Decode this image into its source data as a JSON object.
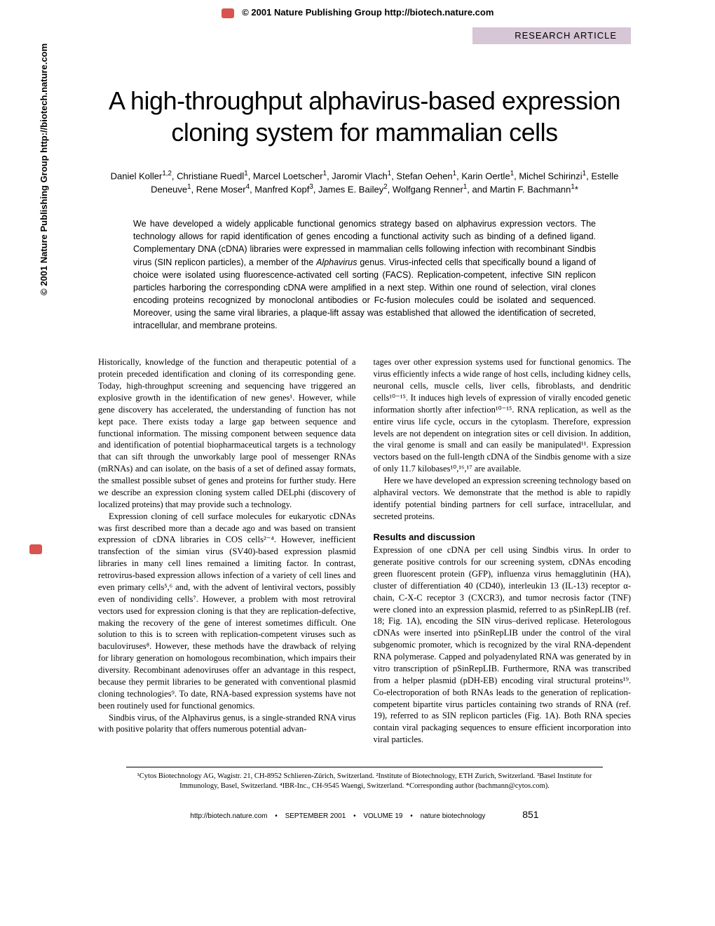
{
  "header": {
    "copyright": "© 2001 Nature Publishing Group  http://biotech.nature.com",
    "section_label": "RESEARCH ARTICLE"
  },
  "side_copyright": "© 2001 Nature Publishing Group  http://biotech.nature.com",
  "title": "A high-throughput alphavirus-based expression cloning system for mammalian cells",
  "authors_html": "Daniel Koller<sup>1,2</sup>, Christiane Ruedl<sup>1</sup>, Marcel Loetscher<sup>1</sup>, Jaromir Vlach<sup>1</sup>, Stefan Oehen<sup>1</sup>, Karin Oertle<sup>1</sup>, Michel Schirinzi<sup>1</sup>, Estelle Deneuve<sup>1</sup>, Rene Moser<sup>4</sup>, Manfred Kopf<sup>3</sup>, James E. Bailey<sup>2</sup>, Wolfgang Renner<sup>1</sup>, and Martin F. Bachmann<sup>1</sup>*",
  "abstract": "We have developed a widely applicable functional genomics strategy based on alphavirus expression vectors. The technology allows for rapid identification of genes encoding a functional activity such as binding of a defined ligand. Complementary DNA (cDNA) libraries were expressed in mammalian cells following infection with recombinant Sindbis virus (SIN replicon particles), a member of the Alphavirus genus. Virus-infected cells that specifically bound a ligand of choice were isolated using fluorescence-activated cell sorting (FACS). Replication-competent, infective SIN replicon particles harboring the corresponding cDNA were amplified in a next step. Within one round of selection, viral clones encoding proteins recognized by monoclonal antibodies or Fc-fusion molecules could be isolated and sequenced. Moreover, using the same viral libraries, a plaque-lift assay was established that allowed the identification of secreted, intracellular, and membrane proteins.",
  "body": {
    "left_col": {
      "p1": "Historically, knowledge of the function and therapeutic potential of a protein preceded identification and cloning of its corresponding gene. Today, high-throughput screening and sequencing have triggered an explosive growth in the identification of new genes¹. However, while gene discovery has accelerated, the understanding of function has not kept pace. There exists today a large gap between sequence and functional information. The missing component between sequence data and identification of potential biopharmaceutical targets is a technology that can sift through the unworkably large pool of messenger RNAs (mRNAs) and can isolate, on the basis of a set of defined assay formats, the smallest possible subset of genes and proteins for further study. Here we describe an expression cloning system called DELphi (discovery of localized proteins) that may provide such a technology.",
      "p2": "Expression cloning of cell surface molecules for eukaryotic cDNAs was first described more than a decade ago and was based on transient expression of cDNA libraries in COS cells²⁻⁴. However, inefficient transfection of the simian virus (SV40)-based expression plasmid libraries in many cell lines remained a limiting factor. In contrast, retrovirus-based expression allows infection of a variety of cell lines and even primary cells⁵,⁶ and, with the advent of lentiviral vectors, possibly even of nondividing cells⁷. However, a problem with most retroviral vectors used for expression cloning is that they are replication-defective, making the recovery of the gene of interest sometimes difficult. One solution to this is to screen with replication-competent viruses such as baculoviruses⁸. However, these methods have the drawback of relying for library generation on homologous recombination, which impairs their diversity. Recombinant adenoviruses offer an advantage in this respect, because they permit libraries to be generated with conventional plasmid cloning technologies⁹. To date, RNA-based expression systems have not been routinely used for functional genomics.",
      "p3": "Sindbis virus, of the Alphavirus genus, is a single-stranded RNA virus with positive polarity that offers numerous potential advan-"
    },
    "right_col": {
      "p1": "tages over other expression systems used for functional genomics. The virus efficiently infects a wide range of host cells, including kidney cells, neuronal cells, muscle cells, liver cells, fibroblasts, and dendritic cells¹⁰⁻¹⁵. It induces high levels of expression of virally encoded genetic information shortly after infection¹⁰⁻¹⁵. RNA replication, as well as the entire virus life cycle, occurs in the cytoplasm. Therefore, expression levels are not dependent on integration sites or cell division. In addition, the viral genome is small and can easily be manipulated¹¹. Expression vectors based on the full-length cDNA of the Sindbis genome with a size of only 11.7 kilobases¹⁰,¹⁶,¹⁷ are available.",
      "p2": "Here we have developed an expression screening technology based on alphaviral vectors. We demonstrate that the method is able to rapidly identify potential binding partners for cell surface, intracellular, and secreted proteins.",
      "results_heading": "Results and discussion",
      "p3": "Expression of one cDNA per cell using Sindbis virus. In order to generate positive controls for our screening system, cDNAs encoding green fluorescent protein (GFP), influenza virus hemagglutinin (HA), cluster of differentiation 40 (CD40), interleukin 13 (IL-13) receptor α-chain, C-X-C receptor 3 (CXCR3), and tumor necrosis factor (TNF) were cloned into an expression plasmid, referred to as pSinRepLIB (ref. 18; Fig. 1A), encoding the SIN virus–derived replicase. Heterologous cDNAs were inserted into pSinRepLIB under the control of the viral subgenomic promoter, which is recognized by the viral RNA-dependent RNA polymerase. Capped and polyadenylated RNA was generated by in vitro transcription of pSinRepLIB. Furthermore, RNA was transcribed from a helper plasmid (pDH-EB) encoding viral structural proteins¹⁹. Co-electroporation of both RNAs leads to the generation of replication-competent bipartite virus particles containing two strands of RNA (ref. 19), referred to as SIN replicon particles (Fig. 1A). Both RNA species contain viral packaging sequences to ensure efficient incorporation into viral particles."
    }
  },
  "affiliations": "¹Cytos Biotechnology AG, Wagistr. 21, CH-8952 Schlieren-Zürich, Switzerland. ²Institute of Biotechnology, ETH Zurich, Switzerland. ³Basel Institute for Immunology, Basel, Switzerland. ⁴IBR-Inc., CH-9545 Waengi, Switzerland. *Corresponding author (bachmann@cytos.com).",
  "footer": {
    "url": "http://biotech.nature.com",
    "date": "SEPTEMBER 2001",
    "volume": "VOLUME 19",
    "journal": "nature biotechnology",
    "page": "851"
  }
}
